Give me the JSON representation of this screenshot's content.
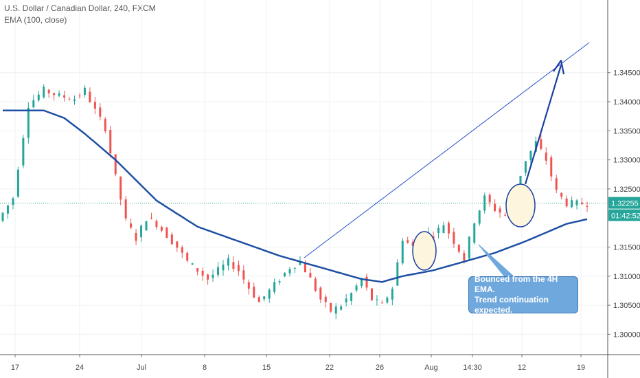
{
  "legend": {
    "symbol_line": "U.S. Dollar / Canadian Dollar, 240, FXCM",
    "indicator_line": "EMA (100, close)"
  },
  "annotation": {
    "line1": "Bounced from the 4H EMA.",
    "line2": "Trend continuation expected."
  },
  "badges": {
    "price": "1.32255",
    "timer": "01:42:52"
  },
  "colors": {
    "up": "#26a69a",
    "down": "#ef5350",
    "ema": "#1e4fa3",
    "drawing": "#1c3fa0",
    "circle_fill": "#fdf5dc",
    "price_line": "#26a69a",
    "note_bg": "#6fa8dc"
  },
  "chart_data": {
    "type": "candlestick",
    "y_axis_ticks": [
      "1.34500",
      "1.34000",
      "1.33500",
      "1.33000",
      "1.32500",
      "1.31500",
      "1.31000",
      "1.30500",
      "1.30000"
    ],
    "y_range": [
      1.2965,
      1.3575
    ],
    "x_tick_labels": [
      "17",
      "24",
      "Jul",
      "8",
      "15",
      "22",
      "26",
      "Aug",
      "14:30",
      "12",
      "19"
    ],
    "current_price": 1.32255,
    "ohlc_close_path": [
      [
        0,
        1.3195
      ],
      [
        3,
        1.3235
      ],
      [
        6,
        1.3395
      ],
      [
        9,
        1.342
      ],
      [
        12,
        1.341
      ],
      [
        15,
        1.3405
      ],
      [
        17,
        1.342
      ],
      [
        19,
        1.3385
      ],
      [
        21,
        1.3355
      ],
      [
        23,
        1.327
      ],
      [
        25,
        1.3195
      ],
      [
        27,
        1.3165
      ],
      [
        29,
        1.32
      ],
      [
        31,
        1.319
      ],
      [
        33,
        1.317
      ],
      [
        35,
        1.315
      ],
      [
        37,
        1.3125
      ],
      [
        39,
        1.311
      ],
      [
        41,
        1.3095
      ],
      [
        43,
        1.311
      ],
      [
        45,
        1.3125
      ],
      [
        47,
        1.311
      ],
      [
        49,
        1.308
      ],
      [
        51,
        1.3055
      ],
      [
        53,
        1.3075
      ],
      [
        55,
        1.3095
      ],
      [
        57,
        1.3115
      ],
      [
        59,
        1.3125
      ],
      [
        61,
        1.3095
      ],
      [
        63,
        1.306
      ],
      [
        65,
        1.304
      ],
      [
        67,
        1.305
      ],
      [
        69,
        1.307
      ],
      [
        71,
        1.3095
      ],
      [
        73,
        1.306
      ],
      [
        75,
        1.305
      ],
      [
        77,
        1.308
      ],
      [
        79,
        1.3165
      ],
      [
        81,
        1.315
      ],
      [
        83,
        1.3175
      ],
      [
        85,
        1.317
      ],
      [
        87,
        1.319
      ],
      [
        89,
        1.316
      ],
      [
        91,
        1.313
      ],
      [
        93,
        1.3195
      ],
      [
        95,
        1.3235
      ],
      [
        97,
        1.3215
      ],
      [
        99,
        1.3205
      ],
      [
        101,
        1.325
      ],
      [
        103,
        1.33
      ],
      [
        105,
        1.333
      ],
      [
        107,
        1.33
      ],
      [
        109,
        1.3245
      ],
      [
        111,
        1.3225
      ],
      [
        113,
        1.3225
      ]
    ],
    "ema_path": [
      [
        0,
        1.3385
      ],
      [
        8,
        1.3385
      ],
      [
        12,
        1.3372
      ],
      [
        16,
        1.3345
      ],
      [
        22,
        1.33
      ],
      [
        30,
        1.323
      ],
      [
        38,
        1.3185
      ],
      [
        46,
        1.316
      ],
      [
        54,
        1.3135
      ],
      [
        62,
        1.3115
      ],
      [
        70,
        1.3095
      ],
      [
        74,
        1.309
      ],
      [
        78,
        1.31
      ],
      [
        84,
        1.311
      ],
      [
        90,
        1.3125
      ],
      [
        96,
        1.314
      ],
      [
        102,
        1.316
      ],
      [
        106,
        1.3175
      ],
      [
        110,
        1.319
      ],
      [
        114,
        1.3198
      ]
    ]
  }
}
